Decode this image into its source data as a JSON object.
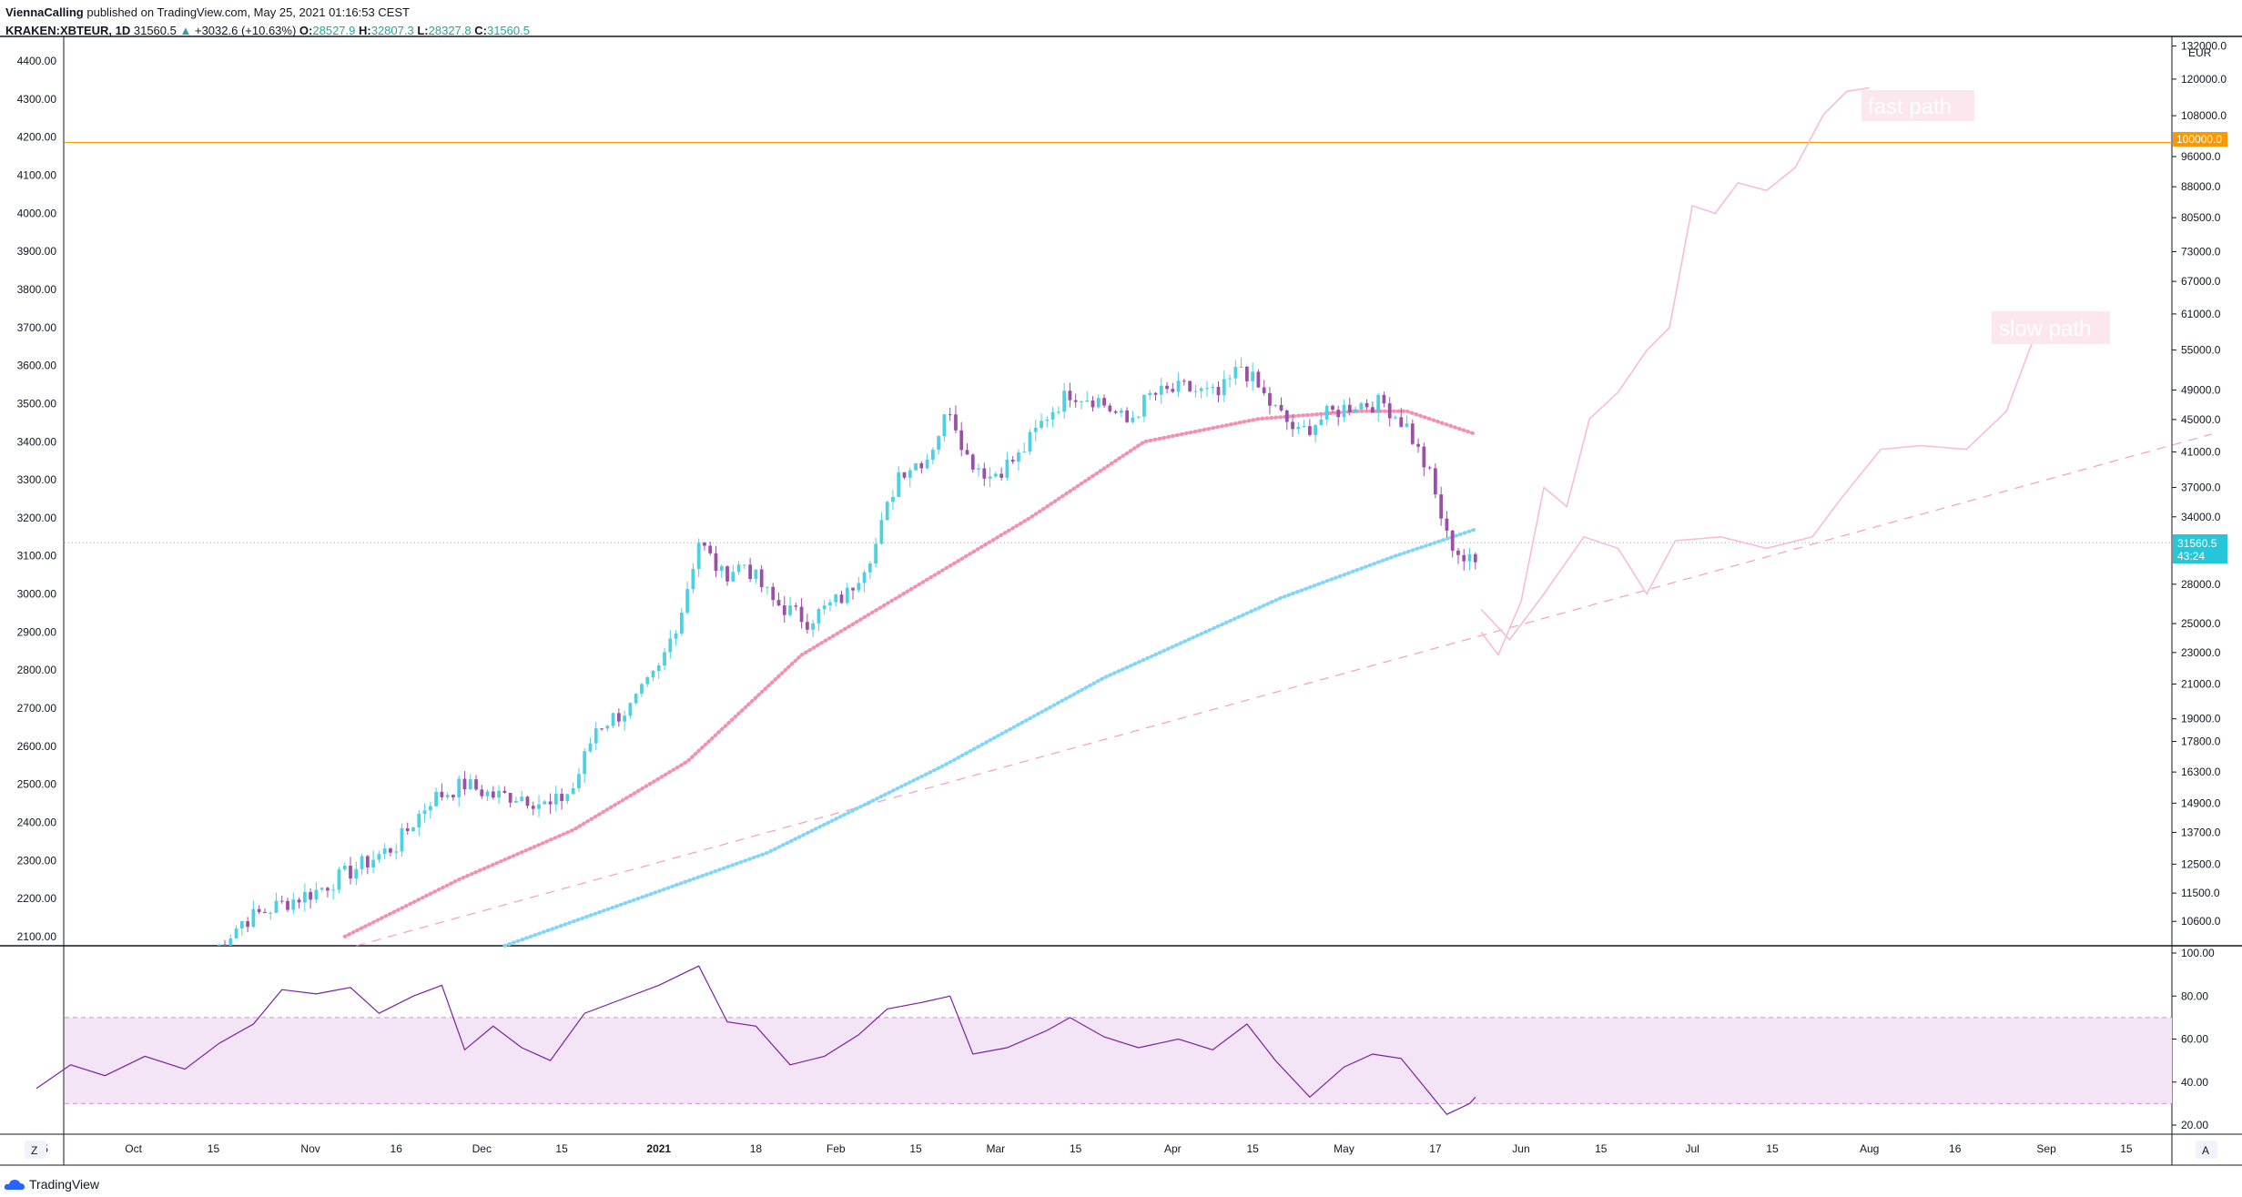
{
  "header": {
    "author": "ViennaCalling",
    "published_text": "published on TradingView.com, May 25, 2021 01:16:53 CEST",
    "symbol": "KRAKEN:XBTEUR, 1D",
    "price": "31560.5",
    "change": "+3032.6 (+10.63%)",
    "open_label": "O:",
    "open": "28527.9",
    "high_label": "H:",
    "high": "32807.3",
    "low_label": "L:",
    "low": "28327.8",
    "close_label": "C:",
    "close": "31560.5"
  },
  "footer": {
    "brand": "TradingView"
  },
  "buttons": {
    "left_scale": "Z",
    "right_scale": "A"
  },
  "price_axis": {
    "currency": "EUR",
    "left_labels": [
      "4400.00",
      "4300.00",
      "4200.00",
      "4100.00",
      "4000.00",
      "3900.00",
      "3800.00",
      "3700.00",
      "3600.00",
      "3500.00",
      "3400.00",
      "3300.00",
      "3200.00",
      "3100.00",
      "3000.00",
      "2900.00",
      "2800.00",
      "2700.00",
      "2600.00",
      "2500.00",
      "2400.00",
      "2300.00",
      "2200.00",
      "2100.00"
    ],
    "right_labels": [
      "132000.0",
      "120000.0",
      "108000.0",
      "96000.0",
      "88000.0",
      "80500.0",
      "73000.0",
      "67000.0",
      "61000.0",
      "55000.0",
      "49000.0",
      "45000.0",
      "41000.0",
      "37000.0",
      "34000.0",
      "28000.0",
      "25000.0",
      "23000.0",
      "21000.0",
      "19000.0",
      "17800.0",
      "16300.0",
      "14900.0",
      "13700.0",
      "12500.0",
      "11500.0",
      "10600.0"
    ],
    "horizontal_line_label": "100000.0",
    "last_price_label": "31560.5",
    "countdown": "43:24"
  },
  "rsi_axis": {
    "labels": [
      "100.00",
      "80.00",
      "60.00",
      "40.00",
      "20.00"
    ],
    "upper_band": 70,
    "lower_band": 30
  },
  "time_axis": {
    "labels": [
      "15",
      "Oct",
      "15",
      "Nov",
      "16",
      "Dec",
      "15",
      "2021",
      "18",
      "Feb",
      "15",
      "Mar",
      "15",
      "Apr",
      "15",
      "May",
      "17",
      "Jun",
      "15",
      "Jul",
      "15",
      "Aug",
      "16",
      "Sep",
      "15"
    ]
  },
  "annotations": {
    "fast_path": "fast path",
    "slow_path": "slow path"
  },
  "colors": {
    "up": "#4dd0e1",
    "down": "#9c4fa8",
    "ma_fast": "#f48fb1",
    "ma_slow": "#81d4fa",
    "path": "#f8bbd9",
    "hline": "#ff9800",
    "rsi": "#7b1fa2",
    "rsi_band": "#f3e5f5"
  },
  "chart_data": {
    "type": "candlestick",
    "symbol": "KRAKEN:XBTEUR",
    "interval": "1D",
    "x_start": "2020-09-14",
    "x_end": "2021-09-30",
    "y_left_range": [
      2040,
      4460
    ],
    "y_right_range": [
      9500,
      135000
    ],
    "horizontal_line": 100000,
    "last_price": 31560.5,
    "price_key_points": [
      [
        "2020-10-15",
        2060
      ],
      [
        "2020-10-20",
        2140
      ],
      [
        "2020-10-26",
        2180
      ],
      [
        "2020-11-02",
        2220
      ],
      [
        "2020-11-09",
        2280
      ],
      [
        "2020-11-16",
        2340
      ],
      [
        "2020-11-22",
        2460
      ],
      [
        "2020-11-28",
        2500
      ],
      [
        "2020-12-03",
        2470
      ],
      [
        "2020-12-08",
        2470
      ],
      [
        "2020-12-13",
        2440
      ],
      [
        "2020-12-17",
        2490
      ],
      [
        "2020-12-21",
        2650
      ],
      [
        "2020-12-27",
        2700
      ],
      [
        "2021-01-01",
        2800
      ],
      [
        "2021-01-05",
        2960
      ],
      [
        "2021-01-08",
        3140
      ],
      [
        "2021-01-12",
        3050
      ],
      [
        "2021-01-16",
        3080
      ],
      [
        "2021-01-21",
        2980
      ],
      [
        "2021-01-27",
        2930
      ],
      [
        "2021-02-03",
        3000
      ],
      [
        "2021-02-08",
        3130
      ],
      [
        "2021-02-12",
        3320
      ],
      [
        "2021-02-17",
        3360
      ],
      [
        "2021-02-21",
        3490
      ],
      [
        "2021-02-24",
        3360
      ],
      [
        "2021-02-28",
        3310
      ],
      [
        "2021-03-05",
        3360
      ],
      [
        "2021-03-10",
        3470
      ],
      [
        "2021-03-14",
        3530
      ],
      [
        "2021-03-19",
        3510
      ],
      [
        "2021-03-24",
        3450
      ],
      [
        "2021-03-28",
        3520
      ],
      [
        "2021-04-03",
        3540
      ],
      [
        "2021-04-09",
        3520
      ],
      [
        "2021-04-13",
        3600
      ],
      [
        "2021-04-18",
        3500
      ],
      [
        "2021-04-23",
        3420
      ],
      [
        "2021-04-28",
        3470
      ],
      [
        "2021-05-03",
        3500
      ],
      [
        "2021-05-08",
        3500
      ],
      [
        "2021-05-12",
        3440
      ],
      [
        "2021-05-16",
        3310
      ],
      [
        "2021-05-19",
        3150
      ],
      [
        "2021-05-22",
        3090
      ],
      [
        "2021-05-24",
        3080
      ]
    ],
    "ma_fast": [
      [
        "2020-11-07",
        2100
      ],
      [
        "2020-11-27",
        2250
      ],
      [
        "2020-12-17",
        2380
      ],
      [
        "2021-01-06",
        2560
      ],
      [
        "2021-01-26",
        2840
      ],
      [
        "2021-02-15",
        3020
      ],
      [
        "2021-03-07",
        3200
      ],
      [
        "2021-03-27",
        3400
      ],
      [
        "2021-04-16",
        3460
      ],
      [
        "2021-05-03",
        3480
      ],
      [
        "2021-05-12",
        3480
      ],
      [
        "2021-05-24",
        3420
      ]
    ],
    "ma_slow": [
      [
        "2020-12-05",
        2050
      ],
      [
        "2021-01-20",
        2320
      ],
      [
        "2021-02-20",
        2550
      ],
      [
        "2021-03-20",
        2780
      ],
      [
        "2021-04-20",
        2990
      ],
      [
        "2021-05-10",
        3100
      ],
      [
        "2021-05-24",
        3170
      ]
    ],
    "trendline": [
      [
        "2020-11-09",
        2040
      ],
      [
        "2021-09-30",
        3420
      ]
    ],
    "fast_path": [
      [
        "2021-05-25",
        2900
      ],
      [
        "2021-05-28",
        2840
      ],
      [
        "2021-06-01",
        2980
      ],
      [
        "2021-06-05",
        3280
      ],
      [
        "2021-06-09",
        3230
      ],
      [
        "2021-06-13",
        3460
      ],
      [
        "2021-06-18",
        3530
      ],
      [
        "2021-06-23",
        3640
      ],
      [
        "2021-06-27",
        3700
      ],
      [
        "2021-07-01",
        4020
      ],
      [
        "2021-07-05",
        4000
      ],
      [
        "2021-07-09",
        4080
      ],
      [
        "2021-07-14",
        4060
      ],
      [
        "2021-07-19",
        4120
      ],
      [
        "2021-07-24",
        4260
      ],
      [
        "2021-07-28",
        4320
      ],
      [
        "2021-08-01",
        4330
      ]
    ],
    "slow_path": [
      [
        "2021-05-25",
        2960
      ],
      [
        "2021-05-30",
        2880
      ],
      [
        "2021-06-05",
        3000
      ],
      [
        "2021-06-12",
        3150
      ],
      [
        "2021-06-18",
        3120
      ],
      [
        "2021-06-23",
        3000
      ],
      [
        "2021-06-28",
        3140
      ],
      [
        "2021-07-06",
        3150
      ],
      [
        "2021-07-14",
        3120
      ],
      [
        "2021-07-22",
        3150
      ],
      [
        "2021-07-27",
        3250
      ],
      [
        "2021-08-03",
        3380
      ],
      [
        "2021-08-10",
        3390
      ],
      [
        "2021-08-18",
        3380
      ],
      [
        "2021-08-25",
        3480
      ],
      [
        "2021-08-30",
        3680
      ]
    ],
    "rsi": [
      [
        "2020-09-14",
        37
      ],
      [
        "2020-09-20",
        48
      ],
      [
        "2020-09-26",
        43
      ],
      [
        "2020-10-03",
        52
      ],
      [
        "2020-10-10",
        46
      ],
      [
        "2020-10-16",
        58
      ],
      [
        "2020-10-22",
        67
      ],
      [
        "2020-10-27",
        83
      ],
      [
        "2020-11-02",
        81
      ],
      [
        "2020-11-08",
        84
      ],
      [
        "2020-11-13",
        72
      ],
      [
        "2020-11-19",
        80
      ],
      [
        "2020-11-24",
        85
      ],
      [
        "2020-11-28",
        55
      ],
      [
        "2020-12-03",
        66
      ],
      [
        "2020-12-08",
        56
      ],
      [
        "2020-12-13",
        50
      ],
      [
        "2020-12-19",
        72
      ],
      [
        "2020-12-25",
        78
      ],
      [
        "2021-01-01",
        85
      ],
      [
        "2021-01-08",
        94
      ],
      [
        "2021-01-13",
        68
      ],
      [
        "2021-01-18",
        66
      ],
      [
        "2021-01-24",
        48
      ],
      [
        "2021-01-30",
        52
      ],
      [
        "2021-02-05",
        62
      ],
      [
        "2021-02-10",
        74
      ],
      [
        "2021-02-16",
        77
      ],
      [
        "2021-02-21",
        80
      ],
      [
        "2021-02-25",
        53
      ],
      [
        "2021-03-03",
        56
      ],
      [
        "2021-03-10",
        64
      ],
      [
        "2021-03-14",
        70
      ],
      [
        "2021-03-20",
        61
      ],
      [
        "2021-03-26",
        56
      ],
      [
        "2021-04-02",
        60
      ],
      [
        "2021-04-08",
        55
      ],
      [
        "2021-04-14",
        67
      ],
      [
        "2021-04-19",
        50
      ],
      [
        "2021-04-25",
        33
      ],
      [
        "2021-05-01",
        47
      ],
      [
        "2021-05-06",
        53
      ],
      [
        "2021-05-11",
        51
      ],
      [
        "2021-05-15",
        38
      ],
      [
        "2021-05-19",
        25
      ],
      [
        "2021-05-23",
        30
      ],
      [
        "2021-05-24",
        33
      ]
    ]
  }
}
